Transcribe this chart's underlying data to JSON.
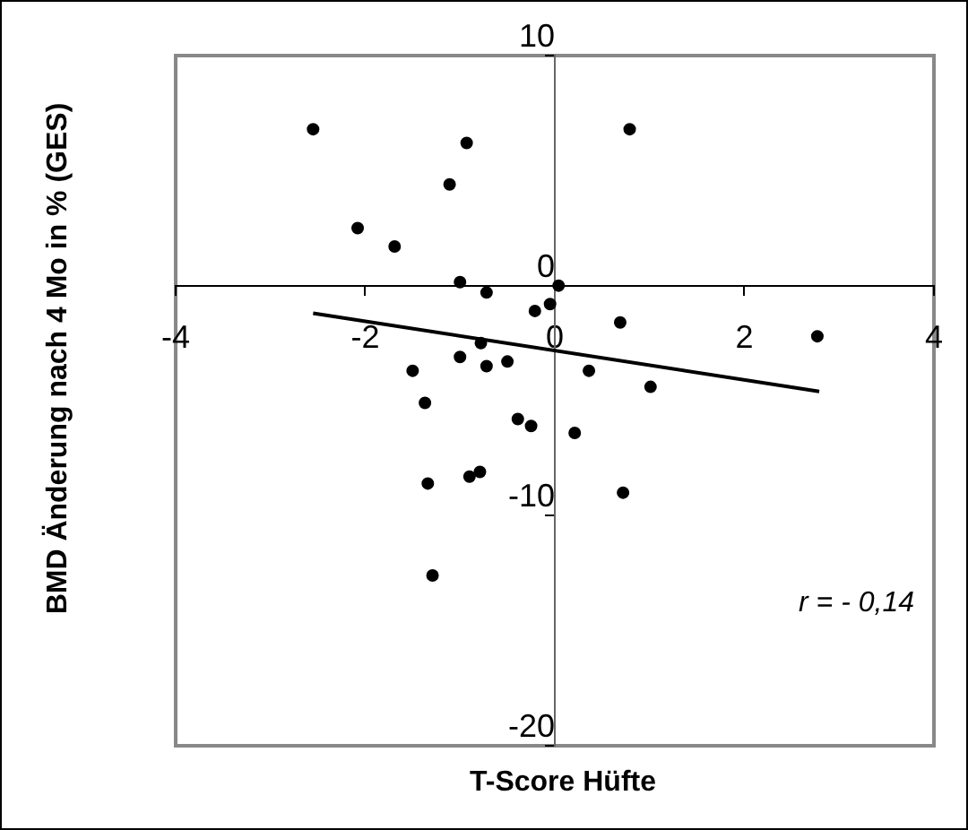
{
  "chart_data": {
    "type": "scatter",
    "xlabel": "T-Score Hüfte",
    "ylabel": "BMD Änderung nach 4 Mo in % (GES)",
    "annotations": [
      "r = - 0,14"
    ],
    "xlim": [
      -4,
      4
    ],
    "xticks": [
      -4,
      -2,
      0,
      2,
      4
    ],
    "ylim": [
      -20,
      10
    ],
    "yticks": [
      -20,
      -10,
      0,
      10
    ],
    "grid": false,
    "legend": false,
    "marker": "circle",
    "series": [
      {
        "type": "scatter",
        "color": "#000000",
        "x": [
          -2.55,
          -0.93,
          -1.11,
          -2.08,
          -1.69,
          -1.0,
          -0.72,
          -0.21,
          -0.05,
          0.04,
          0.79,
          0.69,
          2.77,
          -0.78,
          -1.5,
          -1.0,
          -0.72,
          -0.5,
          0.36,
          1.01,
          -1.37,
          -0.39,
          -0.25,
          0.21,
          -1.34,
          -0.9,
          -0.79,
          0.72,
          -1.29
        ],
        "values": [
          6.8,
          6.2,
          4.4,
          2.5,
          1.7,
          0.15,
          -0.3,
          -1.1,
          -0.8,
          0.0,
          6.8,
          -1.6,
          -2.2,
          -2.5,
          -3.7,
          -3.1,
          -3.5,
          -3.3,
          -3.7,
          -4.4,
          -5.1,
          -5.8,
          -6.1,
          -6.4,
          -8.6,
          -8.3,
          -8.1,
          -9.0,
          -12.6
        ]
      },
      {
        "type": "line",
        "color": "#000000",
        "marker": "none",
        "x": [
          -2.55,
          2.79
        ],
        "values": [
          -1.2,
          -4.6
        ]
      }
    ]
  }
}
